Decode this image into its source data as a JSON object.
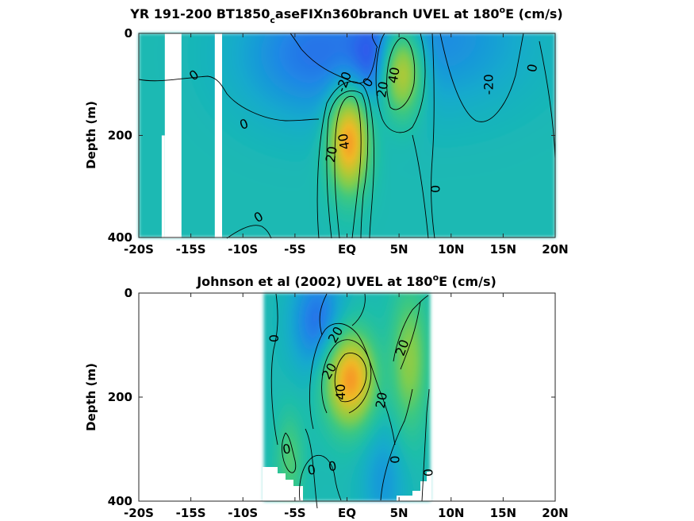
{
  "chart_data": [
    {
      "type": "heatmap",
      "title": {
        "pre": "YR 191-200 BT1850",
        "sub": "c",
        "mid": "aseFIXn360branch UVEL at 180",
        "sup": "o",
        "post": "E (cm/s)"
      },
      "ylabel": "Depth (m)",
      "xlim": [
        -20,
        20
      ],
      "ylim": [
        0,
        400
      ],
      "x_ticks": [
        {
          "value": -20,
          "label": "-20S"
        },
        {
          "value": -15,
          "label": "-15S"
        },
        {
          "value": -10,
          "label": "-10S"
        },
        {
          "value": -5,
          "label": "-5S"
        },
        {
          "value": 0,
          "label": "EQ"
        },
        {
          "value": 5,
          "label": "5N"
        },
        {
          "value": 10,
          "label": "10N"
        },
        {
          "value": 15,
          "label": "15N"
        },
        {
          "value": 20,
          "label": "20N"
        }
      ],
      "y_ticks": [
        {
          "value": 0,
          "label": "0"
        },
        {
          "value": 200,
          "label": "200"
        },
        {
          "value": 400,
          "label": "400"
        }
      ],
      "data_extent": [
        -20,
        20
      ],
      "missing_bands": [
        {
          "x0": -17.5,
          "x1": -15.9,
          "z_start": 0
        },
        {
          "x0": -17.8,
          "x1": -17.5,
          "z_start": 200
        },
        {
          "x0": -12.7,
          "x1": -12.0,
          "z_start": 0
        }
      ],
      "features": [
        {
          "kind": "jet",
          "x": 0.2,
          "z": 210,
          "peak": 55,
          "sx": 1.3,
          "sz": 65
        },
        {
          "kind": "jet",
          "x": 5.2,
          "z": 75,
          "peak": 45,
          "sx": 1.4,
          "sz": 58
        },
        {
          "kind": "jet",
          "x": -3.5,
          "z": 40,
          "peak": -16,
          "sx": 5,
          "sz": 90
        },
        {
          "kind": "jet",
          "x": 2.8,
          "z": 55,
          "peak": -12,
          "sx": 1.6,
          "sz": 60
        },
        {
          "kind": "jet",
          "x": 9,
          "z": 10,
          "peak": -12,
          "sx": 6,
          "sz": 95
        }
      ],
      "contour_labels": [
        {
          "text": "-20",
          "x": -0.3,
          "z": 95,
          "angle": -70
        },
        {
          "text": "0",
          "x": 2.0,
          "z": 96,
          "angle": -60
        },
        {
          "text": "20",
          "x": 3.4,
          "z": 110,
          "angle": -80
        },
        {
          "text": "40",
          "x": 4.5,
          "z": 82,
          "angle": -80
        },
        {
          "text": "-20",
          "x": 13.6,
          "z": 100,
          "angle": -90
        },
        {
          "text": "0",
          "x": 17.8,
          "z": 68,
          "angle": -80
        },
        {
          "text": "0",
          "x": -14.7,
          "z": 82,
          "angle": -35
        },
        {
          "text": "0",
          "x": -9.9,
          "z": 178,
          "angle": -20
        },
        {
          "text": "20",
          "x": -1.5,
          "z": 237,
          "angle": -80
        },
        {
          "text": "40",
          "x": -0.3,
          "z": 212,
          "angle": -100
        },
        {
          "text": "0",
          "x": 8.5,
          "z": 305,
          "angle": -90
        },
        {
          "text": "0",
          "x": -8.5,
          "z": 360,
          "angle": -30
        }
      ]
    },
    {
      "type": "heatmap",
      "title": {
        "pre": "Johnson et al (2002) UVEL at 180",
        "sub": "",
        "mid": "",
        "sup": "o",
        "post": "E (cm/s)"
      },
      "ylabel": "Depth (m)",
      "xlim": [
        -20,
        20
      ],
      "ylim": [
        0,
        400
      ],
      "x_ticks": [
        {
          "value": -20,
          "label": "-20S"
        },
        {
          "value": -15,
          "label": "-15S"
        },
        {
          "value": -10,
          "label": "-10S"
        },
        {
          "value": -5,
          "label": "-5S"
        },
        {
          "value": 0,
          "label": "EQ"
        },
        {
          "value": 5,
          "label": "5N"
        },
        {
          "value": 10,
          "label": "10N"
        },
        {
          "value": 15,
          "label": "15N"
        },
        {
          "value": 20,
          "label": "20N"
        }
      ],
      "y_ticks": [
        {
          "value": 0,
          "label": "0"
        },
        {
          "value": 200,
          "label": "200"
        },
        {
          "value": 400,
          "label": "400"
        }
      ],
      "data_extent": [
        -8,
        8
      ],
      "missing_bands": [],
      "features": [
        {
          "kind": "jet",
          "x": 0.3,
          "z": 165,
          "peak": 55,
          "sx": 1.6,
          "sz": 60
        },
        {
          "kind": "jet",
          "x": 6.0,
          "z": 130,
          "peak": 25,
          "sx": 1.2,
          "sz": 90
        },
        {
          "kind": "jet",
          "x": -2.8,
          "z": 55,
          "peak": -18,
          "sx": 1.8,
          "sz": 70
        },
        {
          "kind": "jet",
          "x": -5.5,
          "z": 320,
          "peak": 15,
          "sx": 0.9,
          "sz": 60
        },
        {
          "kind": "jet",
          "x": 3.5,
          "z": 360,
          "peak": -10,
          "sx": 1.5,
          "sz": 80
        }
      ],
      "contour_labels": [
        {
          "text": "0",
          "x": -7.0,
          "z": 87,
          "angle": -90
        },
        {
          "text": "20",
          "x": -1.1,
          "z": 80,
          "angle": -60
        },
        {
          "text": "20",
          "x": -1.7,
          "z": 150,
          "angle": -60
        },
        {
          "text": "40",
          "x": -0.6,
          "z": 190,
          "angle": -90
        },
        {
          "text": "20",
          "x": 3.3,
          "z": 206,
          "angle": -80
        },
        {
          "text": "20",
          "x": 5.3,
          "z": 105,
          "angle": -70
        },
        {
          "text": "0",
          "x": 4.6,
          "z": 320,
          "angle": -90
        },
        {
          "text": "0",
          "x": -5.8,
          "z": 300,
          "angle": -10
        },
        {
          "text": "0",
          "x": -3.4,
          "z": 340,
          "angle": -10
        },
        {
          "text": "0",
          "x": -1.4,
          "z": 333,
          "angle": -10
        },
        {
          "text": "0",
          "x": 7.8,
          "z": 345,
          "angle": -90
        }
      ]
    }
  ]
}
